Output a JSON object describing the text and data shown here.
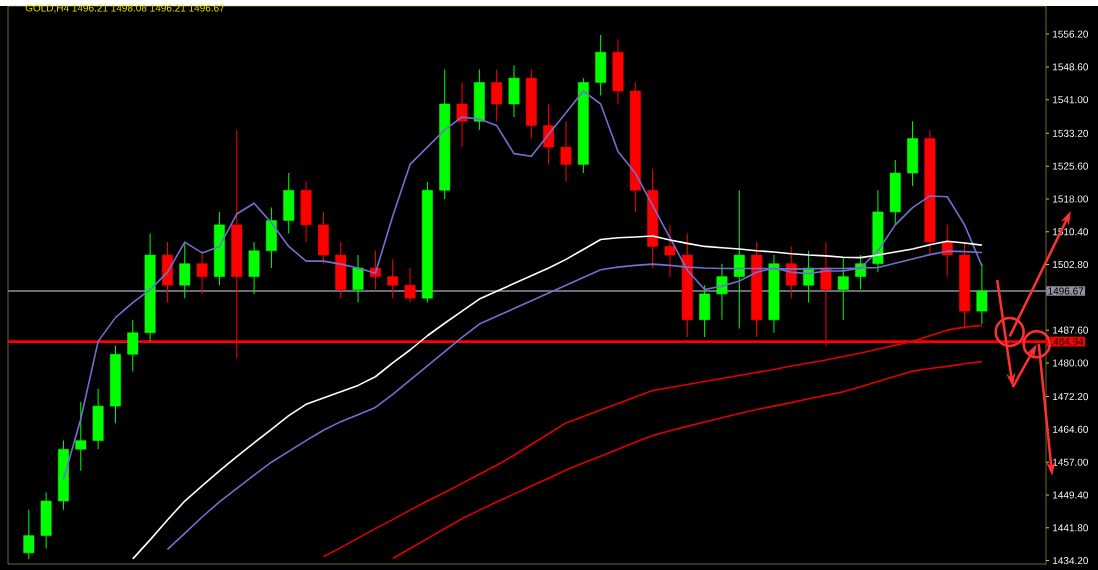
{
  "chart_data": {
    "type": "candlestick",
    "title": "GOLD,H4  1496.21 1498.08 1496.21 1496.67",
    "categories": [
      null,
      null,
      null,
      null,
      null,
      null,
      null,
      null,
      null,
      null,
      null,
      null,
      null,
      null,
      null,
      null,
      null,
      null,
      null,
      null,
      null,
      null,
      null,
      null,
      null,
      null,
      null,
      null,
      null,
      null,
      null,
      null,
      null,
      null,
      null,
      null,
      null,
      null,
      null,
      null,
      null,
      null,
      null,
      null,
      null,
      null,
      null,
      null,
      null,
      null,
      null,
      null,
      null,
      null,
      null,
      null
    ],
    "ohlc": [
      [
        1436,
        1446,
        1434.5,
        1440
      ],
      [
        1440,
        1450,
        1437,
        1448
      ],
      [
        1448,
        1462,
        1446,
        1460
      ],
      [
        1460,
        1471,
        1455,
        1462
      ],
      [
        1462,
        1474,
        1460,
        1470
      ],
      [
        1470,
        1484,
        1466,
        1482
      ],
      [
        1482,
        1490,
        1478,
        1487
      ],
      [
        1487,
        1510,
        1485,
        1505
      ],
      [
        1505,
        1508,
        1494,
        1498
      ],
      [
        1498,
        1508,
        1495,
        1503
      ],
      [
        1503,
        1506,
        1496,
        1500
      ],
      [
        1500,
        1515,
        1498,
        1512
      ],
      [
        1512,
        1534,
        1481,
        1500
      ],
      [
        1500,
        1508,
        1496,
        1506
      ],
      [
        1506,
        1516,
        1502,
        1513
      ],
      [
        1513,
        1524,
        1510,
        1520
      ],
      [
        1520,
        1522,
        1508,
        1512
      ],
      [
        1512,
        1515,
        1503,
        1505
      ],
      [
        1505,
        1508,
        1495,
        1497
      ],
      [
        1497,
        1505,
        1494,
        1502
      ],
      [
        1502,
        1506,
        1497,
        1500
      ],
      [
        1500,
        1504,
        1495,
        1498
      ],
      [
        1498,
        1502,
        1494,
        1495
      ],
      [
        1495,
        1522,
        1494,
        1520
      ],
      [
        1520,
        1548,
        1518,
        1540
      ],
      [
        1540,
        1545,
        1530,
        1536
      ],
      [
        1536,
        1548,
        1534,
        1545
      ],
      [
        1545,
        1548,
        1536,
        1540
      ],
      [
        1540,
        1549,
        1537,
        1546
      ],
      [
        1546,
        1548,
        1532,
        1535
      ],
      [
        1535,
        1540,
        1526,
        1530
      ],
      [
        1530,
        1536,
        1522,
        1526
      ],
      [
        1526,
        1546,
        1524,
        1545
      ],
      [
        1545,
        1556,
        1542,
        1552
      ],
      [
        1552,
        1555,
        1540,
        1543
      ],
      [
        1543,
        1545,
        1515,
        1520
      ],
      [
        1520,
        1525,
        1502,
        1507
      ],
      [
        1507,
        1512,
        1500,
        1505
      ],
      [
        1505,
        1510,
        1486,
        1490
      ],
      [
        1490,
        1498,
        1486,
        1496
      ],
      [
        1496,
        1503,
        1490,
        1500
      ],
      [
        1500,
        1520,
        1488,
        1505
      ],
      [
        1505,
        1508,
        1486,
        1490
      ],
      [
        1490,
        1505,
        1487,
        1503
      ],
      [
        1503,
        1507,
        1495,
        1498
      ],
      [
        1498,
        1506,
        1494,
        1502
      ],
      [
        1502,
        1508,
        1484,
        1497
      ],
      [
        1497,
        1504.5,
        1490,
        1500
      ],
      [
        1500,
        1505,
        1497,
        1503
      ],
      [
        1503,
        1520,
        1501,
        1515
      ],
      [
        1515,
        1527,
        1512,
        1524
      ],
      [
        1524,
        1536,
        1521,
        1532
      ],
      [
        1532,
        1534,
        1505,
        1508
      ],
      [
        1508,
        1512,
        1500,
        1505
      ],
      [
        1505,
        1508,
        1488,
        1492
      ],
      [
        1492,
        1503,
        1489,
        1496.67
      ]
    ],
    "colors": [
      "#00ff00",
      "#00ff00",
      "#00ff00",
      "#00ff00",
      "#00ff00",
      "#00ff00",
      "#00ff00",
      "#00ff00",
      "#ff0000",
      "#00ff00",
      "#ff0000",
      "#00ff00",
      "#ff0000",
      "#00ff00",
      "#00ff00",
      "#00ff00",
      "#ff0000",
      "#ff0000",
      "#ff0000",
      "#00ff00",
      "#ff0000",
      "#ff0000",
      "#ff0000",
      "#00ff00",
      "#00ff00",
      "#ff0000",
      "#00ff00",
      "#ff0000",
      "#00ff00",
      "#ff0000",
      "#ff0000",
      "#ff0000",
      "#00ff00",
      "#00ff00",
      "#ff0000",
      "#ff0000",
      "#ff0000",
      "#ff0000",
      "#ff0000",
      "#00ff00",
      "#00ff00",
      "#00ff00",
      "#ff0000",
      "#00ff00",
      "#ff0000",
      "#00ff00",
      "#ff0000",
      "#00ff00",
      "#00ff00",
      "#00ff00",
      "#00ff00",
      "#00ff00",
      "#ff0000",
      "#ff0000",
      "#ff0000",
      "#00ff00"
    ],
    "series": [
      {
        "type": "line",
        "color": "#7070d0",
        "values": [
          null,
          null,
          1453,
          1467,
          1485,
          1490.5,
          1494,
          1497,
          1501,
          1508,
          1505.5,
          1507,
          1514.5,
          1517,
          1512.5,
          1507,
          1503.6,
          1503.6,
          1502.9,
          1502,
          1500.8,
          1514,
          1526,
          1530,
          1534,
          1537,
          1536.5,
          1535,
          1528.5,
          1527.9,
          1533,
          1538,
          1543,
          1540,
          1529,
          1524,
          1516.5,
          1509,
          1501.5,
          1497,
          1497.8,
          1499,
          1501,
          1502,
          1501,
          1500.7,
          1501.3,
          1501.3,
          1502,
          1506,
          1512,
          1516,
          1518.7,
          1518.5,
          1512,
          1502.5
        ]
      },
      {
        "type": "line",
        "color": "#ffffff",
        "values": [
          null,
          null,
          null,
          null,
          null,
          null,
          1434.6,
          1439,
          1443.6,
          1448,
          1451.5,
          1455,
          1458.3,
          1461.5,
          1464.6,
          1467.8,
          1470.4,
          1471.9,
          1473.3,
          1474.8,
          1476.8,
          1480,
          1483,
          1486.3,
          1489.2,
          1492,
          1494.8,
          1496.6,
          1498.4,
          1500.2,
          1502,
          1504,
          1506.3,
          1508.6,
          1509,
          1509.2,
          1509.4,
          1508.5,
          1507.7,
          1507,
          1506.7,
          1506.4,
          1506,
          1505.7,
          1505.3,
          1505,
          1504.8,
          1504.5,
          1504.4,
          1505,
          1505.7,
          1506.4,
          1507.4,
          1508.2,
          1507.8,
          1507.3
        ]
      },
      {
        "type": "line",
        "color": "#7070d0",
        "values": [
          null,
          null,
          null,
          null,
          null,
          null,
          null,
          null,
          1436.8,
          1440.5,
          1444.3,
          1447.8,
          1450.9,
          1454,
          1457,
          1459.5,
          1462,
          1464.4,
          1466.4,
          1468,
          1469.7,
          1472.7,
          1476,
          1479.3,
          1482.6,
          1485.9,
          1489,
          1490.8,
          1492.6,
          1494.4,
          1496.2,
          1498,
          1499.8,
          1501.6,
          1502.2,
          1502.6,
          1502.9,
          1502.6,
          1502.2,
          1502,
          1501.9,
          1501.9,
          1501.9,
          1501.8,
          1501.8,
          1501.8,
          1501.9,
          1501.9,
          1502,
          1502.1,
          1503.1,
          1504.1,
          1505.1,
          1505.9,
          1505.8,
          1505.6
        ]
      },
      {
        "type": "line",
        "color": "#e00000",
        "values": [
          null,
          null,
          null,
          null,
          null,
          null,
          null,
          null,
          null,
          null,
          null,
          null,
          null,
          null,
          null,
          null,
          null,
          1435.1,
          1437.2,
          1439.4,
          1441.6,
          1443.7,
          1445.9,
          1448,
          1450,
          1452.1,
          1454.2,
          1456.3,
          1458.6,
          1461.1,
          1463.6,
          1466.1,
          1467.6,
          1469.1,
          1470.6,
          1472.1,
          1473.6,
          1474.3,
          1475,
          1475.7,
          1476.4,
          1477.1,
          1477.8,
          1478.5,
          1479.3,
          1480,
          1480.7,
          1481.5,
          1482.3,
          1483.2,
          1484.1,
          1485,
          1486.3,
          1487.6,
          1488.3,
          1488.7
        ]
      },
      {
        "type": "line",
        "color": "#e00000",
        "values": [
          null,
          null,
          null,
          null,
          null,
          null,
          null,
          null,
          null,
          null,
          null,
          null,
          null,
          null,
          null,
          null,
          null,
          null,
          null,
          null,
          null,
          1434.7,
          1437,
          1439.3,
          1441.6,
          1443.9,
          1445.9,
          1447.8,
          1449.6,
          1451.5,
          1453.3,
          1455.2,
          1456.8,
          1458.4,
          1460,
          1461.6,
          1463.2,
          1464.3,
          1465.3,
          1466.3,
          1467.3,
          1468.3,
          1469.2,
          1470,
          1470.8,
          1471.7,
          1472.5,
          1473.3,
          1474.5,
          1475.7,
          1476.9,
          1478.1,
          1478.7,
          1479.2,
          1479.8,
          1480.3
        ]
      }
    ],
    "ylim": [
      1433.4,
      1562.7
    ],
    "yticks": [
      {
        "value": 1434.2,
        "label": "1434.20"
      },
      {
        "value": 1441.8,
        "label": "1441.80"
      },
      {
        "value": 1449.4,
        "label": "1449.40"
      },
      {
        "value": 1457,
        "label": "1457.00"
      },
      {
        "value": 1464.6,
        "label": "1464.60"
      },
      {
        "value": 1472.2,
        "label": "1472.20"
      },
      {
        "value": 1480,
        "label": "1480.00"
      },
      {
        "value": 1487.6,
        "label": "1487.60"
      },
      {
        "value": 1502.8,
        "label": "1502.80"
      },
      {
        "value": 1510.4,
        "label": "1510.40"
      },
      {
        "value": 1518,
        "label": "1518.00"
      },
      {
        "value": 1525.6,
        "label": "1525.60"
      },
      {
        "value": 1533.2,
        "label": "1533.20"
      },
      {
        "value": 1541,
        "label": "1541.00"
      },
      {
        "value": 1548.6,
        "label": "1548.60"
      },
      {
        "value": 1556.2,
        "label": "1556.20"
      }
    ],
    "ref_lines": [
      {
        "axis": "y",
        "value": 1484.94,
        "label": "1484.94",
        "color": "#ff0000"
      },
      {
        "axis": "y",
        "value": 1496.67,
        "label": "1496.67",
        "color": "#9090a0"
      }
    ]
  }
}
